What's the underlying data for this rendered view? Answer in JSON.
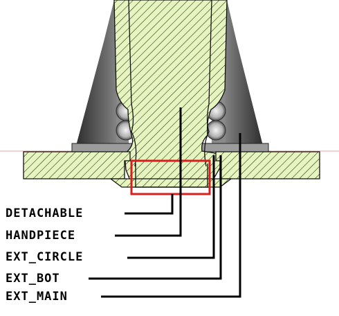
{
  "diagram": {
    "callouts": [
      {
        "id": "detachable",
        "label": "DETACHABLE"
      },
      {
        "id": "handpiece",
        "label": "HANDPIECE"
      },
      {
        "id": "ext-circle",
        "label": "EXT_CIRCLE"
      },
      {
        "id": "ext-bot",
        "label": "EXT_BOT"
      },
      {
        "id": "ext-main",
        "label": "EXT_MAIN"
      }
    ],
    "colors": {
      "section_fill": "#e6f5c0",
      "hatch": "#1f2a0a",
      "metal_dark": "#3a3a3a",
      "metal_light": "#b8b8b8",
      "highlight_box": "#d81e1e",
      "reference_line": "#f0a0a0",
      "leader": "#000000"
    }
  }
}
